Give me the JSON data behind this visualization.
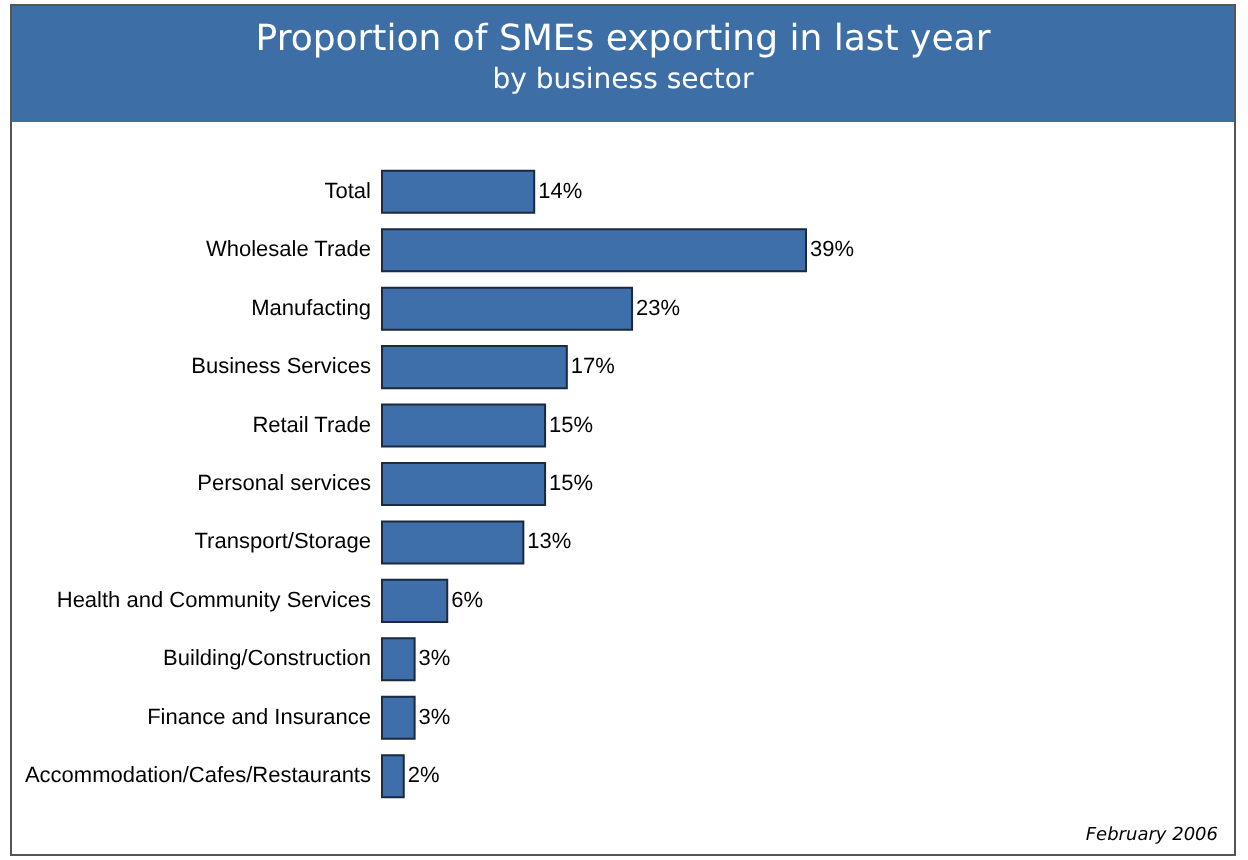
{
  "chart_data": {
    "type": "bar",
    "orientation": "horizontal",
    "title": "Proportion of SMEs exporting in last year",
    "subtitle": "by business sector",
    "categories": [
      "Total",
      "Wholesale Trade",
      "Manufacting",
      "Business Services",
      "Retail Trade",
      "Personal services",
      "Transport/Storage",
      "Health and Community Services",
      "Building/Construction",
      "Finance and Insurance",
      "Accommodation/Cafes/Restaurants"
    ],
    "values": [
      14,
      39,
      23,
      17,
      15,
      15,
      13,
      6,
      3,
      3,
      2
    ],
    "value_labels": [
      "14%",
      "39%",
      "23%",
      "17%",
      "15%",
      "15%",
      "13%",
      "6%",
      "3%",
      "3%",
      "2%"
    ],
    "color": "#3f6faa",
    "annotations": [
      "February 2006"
    ]
  }
}
